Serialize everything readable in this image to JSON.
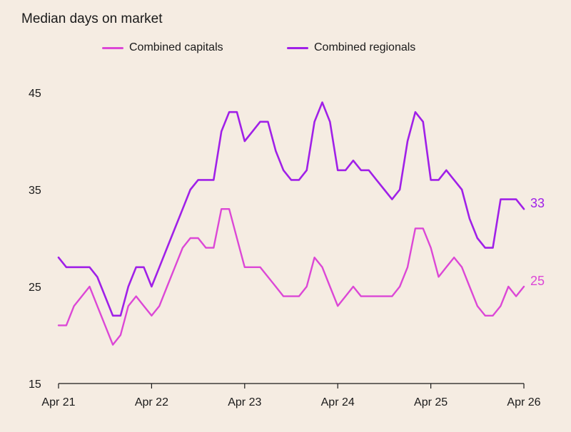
{
  "chart_data": {
    "type": "line",
    "title": "Median days on market",
    "xlabel": "",
    "ylabel": "",
    "ylim": [
      15,
      45
    ],
    "yticks": [
      15,
      25,
      35,
      45
    ],
    "xticks": [
      "Apr 21",
      "Apr 22",
      "Apr 23",
      "Apr 24",
      "Apr 25",
      "Apr 26"
    ],
    "x_range": [
      "2021-04",
      "2026-04"
    ],
    "grid": false,
    "legend_position": "top",
    "series": [
      {
        "name": "Combined capitals",
        "color": "#dc47d6",
        "end_label": "25",
        "x": [
          "2021-04",
          "2021-05",
          "2021-06",
          "2021-07",
          "2021-08",
          "2021-09",
          "2021-10",
          "2021-11",
          "2021-12",
          "2022-01",
          "2022-02",
          "2022-03",
          "2022-04",
          "2022-05",
          "2022-06",
          "2022-07",
          "2022-08",
          "2022-09",
          "2022-10",
          "2022-11",
          "2022-12",
          "2023-01",
          "2023-02",
          "2023-03",
          "2023-04",
          "2023-05",
          "2023-06",
          "2023-07",
          "2023-08",
          "2023-09",
          "2023-10",
          "2023-11",
          "2023-12",
          "2024-01",
          "2024-02",
          "2024-03",
          "2024-04",
          "2024-05",
          "2024-06",
          "2024-07",
          "2024-08",
          "2024-09",
          "2024-10",
          "2024-11",
          "2024-12",
          "2025-01",
          "2025-02",
          "2025-03",
          "2025-04",
          "2025-05",
          "2025-06",
          "2025-07",
          "2025-08",
          "2025-09",
          "2025-10",
          "2025-11",
          "2025-12",
          "2026-01",
          "2026-02",
          "2026-03",
          "2026-04"
        ],
        "values": [
          21,
          21,
          23,
          24,
          25,
          23,
          21,
          19,
          20,
          23,
          24,
          23,
          22,
          23,
          25,
          27,
          29,
          30,
          30,
          29,
          29,
          33,
          33,
          30,
          27,
          27,
          27,
          26,
          25,
          24,
          24,
          24,
          25,
          28,
          27,
          25,
          23,
          24,
          25,
          24,
          24,
          24,
          24,
          24,
          25,
          27,
          31,
          31,
          29,
          26,
          27,
          28,
          27,
          25,
          23,
          22,
          22,
          23,
          25,
          24,
          25
        ]
      },
      {
        "name": "Combined regionals",
        "color": "#a020e8",
        "end_label": "33",
        "x": [
          "2021-04",
          "2021-05",
          "2021-06",
          "2021-07",
          "2021-08",
          "2021-09",
          "2021-10",
          "2021-11",
          "2021-12",
          "2022-01",
          "2022-02",
          "2022-03",
          "2022-04",
          "2022-05",
          "2022-06",
          "2022-07",
          "2022-08",
          "2022-09",
          "2022-10",
          "2022-11",
          "2022-12",
          "2023-01",
          "2023-02",
          "2023-03",
          "2023-04",
          "2023-05",
          "2023-06",
          "2023-07",
          "2023-08",
          "2023-09",
          "2023-10",
          "2023-11",
          "2023-12",
          "2024-01",
          "2024-02",
          "2024-03",
          "2024-04",
          "2024-05",
          "2024-06",
          "2024-07",
          "2024-08",
          "2024-09",
          "2024-10",
          "2024-11",
          "2024-12",
          "2025-01",
          "2025-02",
          "2025-03",
          "2025-04",
          "2025-05",
          "2025-06",
          "2025-07",
          "2025-08",
          "2025-09",
          "2025-10",
          "2025-11",
          "2025-12",
          "2026-01",
          "2026-02",
          "2026-03",
          "2026-04"
        ],
        "values": [
          28,
          27,
          27,
          27,
          27,
          26,
          24,
          22,
          22,
          25,
          27,
          27,
          25,
          27,
          29,
          31,
          33,
          35,
          36,
          36,
          36,
          41,
          43,
          43,
          40,
          41,
          42,
          42,
          39,
          37,
          36,
          36,
          37,
          42,
          44,
          42,
          37,
          37,
          38,
          37,
          37,
          36,
          35,
          34,
          35,
          40,
          43,
          42,
          36,
          36,
          37,
          36,
          35,
          32,
          30,
          29,
          29,
          34,
          34,
          34,
          33
        ]
      }
    ]
  }
}
